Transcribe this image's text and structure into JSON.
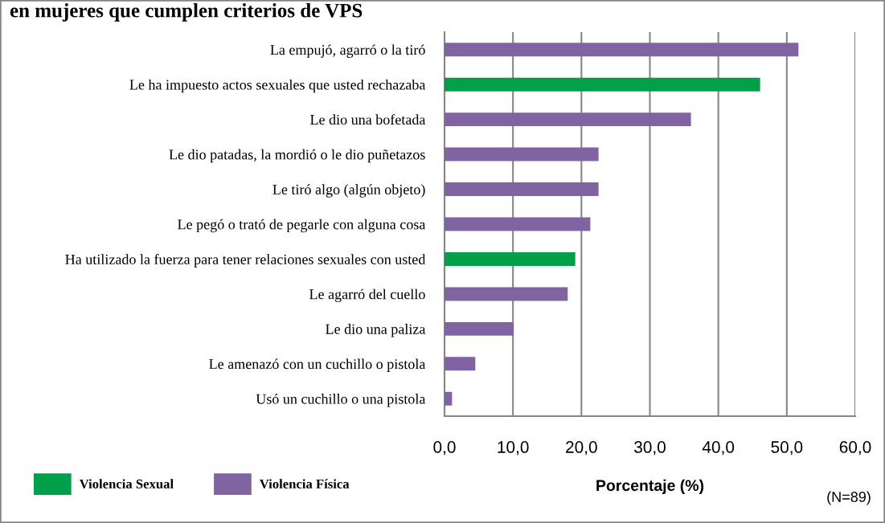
{
  "chart_data": {
    "type": "bar",
    "orientation": "horizontal",
    "title": "en mujeres que cumplen criterios de VPS",
    "xlabel": "Porcentaje (%)",
    "categories": [
      "La empujó, agarró o la tiró",
      "Le ha impuesto actos sexuales que usted rechazaba",
      "Le dio una bofetada",
      "Le dio patadas, la mordió o le dio puñetazos",
      "Le tiró algo (algún objeto)",
      "Le pegó o trató de pegarle con alguna cosa",
      "Ha utilizado la fuerza para tener relaciones sexuales con usted",
      "Le agarró del cuello",
      "Le dio una paliza",
      "Le amenazó con un cuchillo o pistola",
      "Usó un cuchillo o una pistola"
    ],
    "series": [
      {
        "name": "Violencia Sexual",
        "color": "#00a04a",
        "values": [
          null,
          46.1,
          null,
          null,
          null,
          null,
          19.1,
          null,
          null,
          null,
          null
        ]
      },
      {
        "name": "Violencia Física",
        "color": "#8064a2",
        "values": [
          51.7,
          null,
          36.0,
          22.5,
          22.5,
          21.3,
          null,
          18.0,
          10.1,
          4.5,
          1.1
        ]
      }
    ],
    "xlim": [
      0,
      60
    ],
    "xticks": [
      {
        "value": 0,
        "label": "0,0"
      },
      {
        "value": 10,
        "label": "10,0"
      },
      {
        "value": 20,
        "label": "20,0"
      },
      {
        "value": 30,
        "label": "30,0"
      },
      {
        "value": 40,
        "label": "40,0"
      },
      {
        "value": 50,
        "label": "50,0"
      },
      {
        "value": 60,
        "label": "60,0"
      }
    ],
    "grid": "x",
    "legend": "bottom left",
    "annotations": [
      "(N=89)"
    ]
  }
}
